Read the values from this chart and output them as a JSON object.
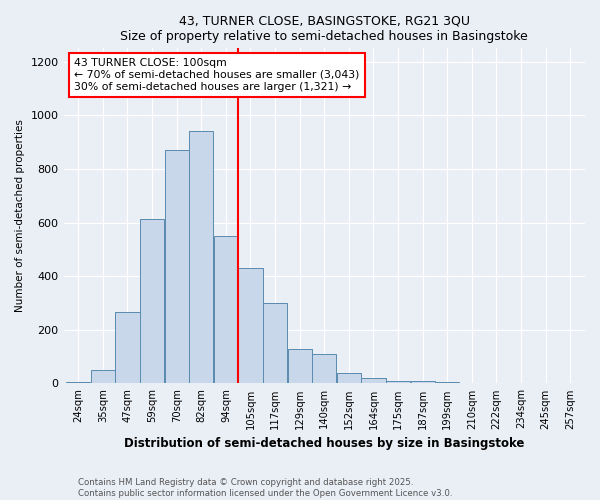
{
  "title": "43, TURNER CLOSE, BASINGSTOKE, RG21 3QU",
  "subtitle": "Size of property relative to semi-detached houses in Basingstoke",
  "xlabel": "Distribution of semi-detached houses by size in Basingstoke",
  "ylabel": "Number of semi-detached properties",
  "bin_labels": [
    "24sqm",
    "35sqm",
    "47sqm",
    "59sqm",
    "70sqm",
    "82sqm",
    "94sqm",
    "105sqm",
    "117sqm",
    "129sqm",
    "140sqm",
    "152sqm",
    "164sqm",
    "175sqm",
    "187sqm",
    "199sqm",
    "210sqm",
    "222sqm",
    "234sqm",
    "245sqm",
    "257sqm"
  ],
  "bar_heights": [
    5,
    50,
    265,
    615,
    870,
    940,
    550,
    430,
    300,
    130,
    110,
    40,
    20,
    10,
    8,
    5,
    3,
    1,
    0,
    0,
    2
  ],
  "bar_color": "#c8d8ea",
  "bar_edge_color": "#5a8ab0",
  "vline_x": 6.5,
  "vline_color": "red",
  "annotation_text": "43 TURNER CLOSE: 100sqm\n← 70% of semi-detached houses are smaller (3,043)\n30% of semi-detached houses are larger (1,321) →",
  "annotation_box_color": "white",
  "annotation_box_edge": "red",
  "ylim": [
    0,
    1250
  ],
  "yticks": [
    0,
    200,
    400,
    600,
    800,
    1000,
    1200
  ],
  "footnote": "Contains HM Land Registry data © Crown copyright and database right 2025.\nContains public sector information licensed under the Open Government Licence v3.0.",
  "bg_color": "#eaeef5",
  "plot_bg_color": "#eaeef5"
}
